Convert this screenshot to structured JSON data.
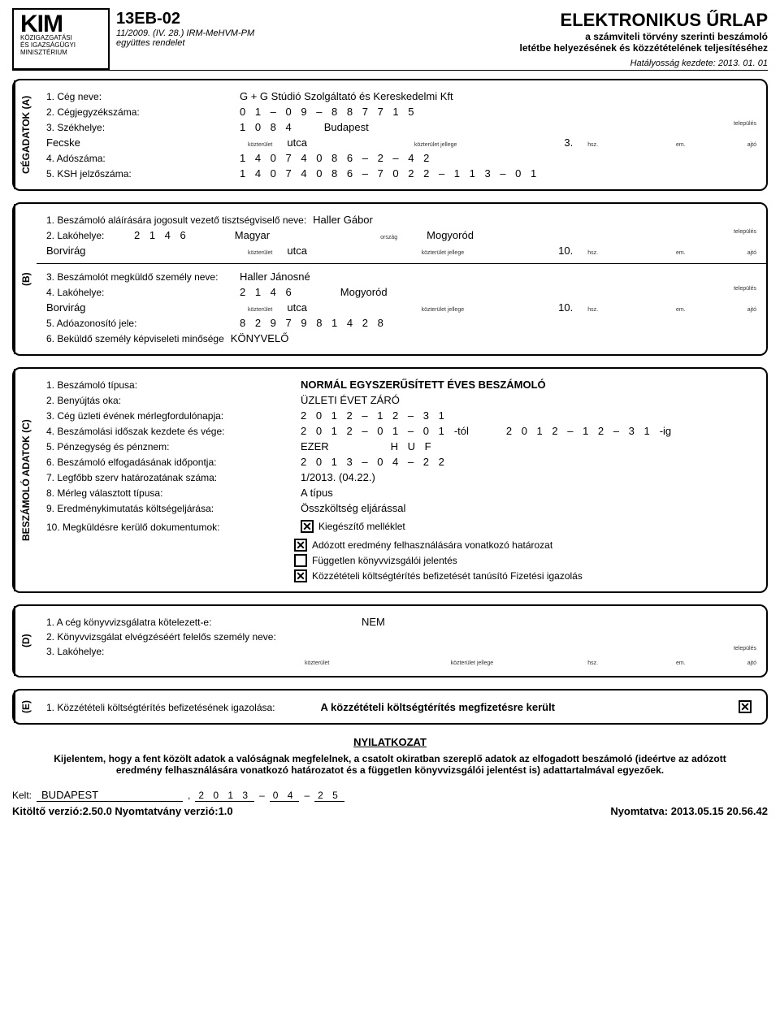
{
  "header": {
    "logo_main": "KIM",
    "logo_sub1": "KÖZIGAZGATÁSI",
    "logo_sub2": "ÉS IGAZSÁGÜGYI",
    "logo_sub3": "MINISZTÉRIUM",
    "form_code": "13EB-02",
    "form_ref1": "11/2009. (IV. 28.) IRM-MeHVM-PM",
    "form_ref2": "együttes rendelet",
    "title": "ELEKTRONIKUS ŰRLAP",
    "sub1": "a számviteli törvény szerinti beszámoló",
    "sub2": "letétbe helyezésének és közzétételének teljesítéséhez",
    "eff": "Hatályosság kezdete: 2013. 01. 01"
  },
  "labels_tiny": {
    "telepules": "település",
    "kozterulet": "közterület",
    "koztjell": "közterület jellege",
    "hsz": "hsz.",
    "em": "em.",
    "ajto": "ajtó",
    "orszag": "ország"
  },
  "A": {
    "title": "CÉGADATOK (A)",
    "l1": "1. Cég neve:",
    "v1": "G + G Stúdió Szolgáltató és Kereskedelmi Kft",
    "l2": "2. Cégjegyzékszáma:",
    "v2": "0 1 – 0 9 – 8 8 7 7 1 5",
    "l3": "3. Székhelye:",
    "v3_zip": "1 0 8 4",
    "v3_city": "Budapest",
    "v3_street": "Fecske",
    "v3_type": "utca",
    "v3_hsz": "3.",
    "l4": "4. Adószáma:",
    "v4": "1 4 0 7 4 0 8 6 – 2 – 4 2",
    "l5": "5. KSH jelzőszáma:",
    "v5": "1 4 0 7 4 0 8 6 – 7 0 2 2 – 1 1 3 – 0 1"
  },
  "B": {
    "title": "(B)",
    "l1": "1. Beszámoló aláírására jogosult vezető tisztségviselő neve:",
    "v1": "Haller Gábor",
    "l2": "2. Lakóhelye:",
    "v2_zip": "2 1 4 6",
    "v2_country": "Magyar",
    "v2_city": "Mogyoród",
    "v2_street": "Borvirág",
    "v2_type": "utca",
    "v2_hsz": "10.",
    "l3": "3. Beszámolót megküldő személy neve:",
    "v3": "Haller Jánosné",
    "l4": "4. Lakóhelye:",
    "v4_zip": "2 1 4 6",
    "v4_city": "Mogyoród",
    "v4_street": "Borvirág",
    "v4_type": "utca",
    "v4_hsz": "10.",
    "l5": "5. Adóazonosító jele:",
    "v5": "8 2 9 7 9 8 1 4 2 8",
    "l6": "6. Beküldő személy képviseleti minősége",
    "v6": "KÖNYVELŐ"
  },
  "C": {
    "title": "BESZÁMOLÓ ADATOK (C)",
    "l1": "1. Beszámoló típusa:",
    "v1": "NORMÁL EGYSZERŰSÍTETT ÉVES BESZÁMOLÓ",
    "l2": "2. Benyújtás oka:",
    "v2": "ÜZLETI ÉVET ZÁRÓ",
    "l3": "3. Cég üzleti évének mérlegfordulónapja:",
    "v3": "2 0 1 2 – 1 2 – 3 1",
    "l4": "4. Beszámolási időszak kezdete és vége:",
    "v4a": "2 0 1 2 – 0 1 – 0 1",
    "v4a_sfx": "-tól",
    "v4b": "2 0 1 2 – 1 2 – 3 1",
    "v4b_sfx": "-ig",
    "l5": "5. Pénzegység és pénznem:",
    "v5a": "EZER",
    "v5b": "H  U  F",
    "l6": "6. Beszámoló elfogadásának időpontja:",
    "v6": "2 0 1 3 – 0 4 – 2 2",
    "l7": "7. Legfőbb szerv határozatának száma:",
    "v7": "1/2013. (04.22.)",
    "l8": "8. Mérleg választott típusa:",
    "v8": "A típus",
    "l9": "9. Eredménykimutatás költségeljárása:",
    "v9": "Összköltség eljárással",
    "l10": "10. Megküldésre kerülő dokumentumok:",
    "docs": [
      {
        "checked": true,
        "label": "Kiegészítő melléklet"
      },
      {
        "checked": true,
        "label": "Adózott eredmény felhasználására vonatkozó határozat"
      },
      {
        "checked": false,
        "label": "Független könyvvizsgálói jelentés"
      },
      {
        "checked": true,
        "label": "Közzétételi költségtérítés befizetését tanúsító Fizetési igazolás"
      }
    ]
  },
  "D": {
    "title": "(D)",
    "l1": "1. A cég könyvvizsgálatra kötelezett-e:",
    "v1": "NEM",
    "l2": "2. Könyvvizsgálat elvégzéséért felelős személy neve:",
    "l3": "3. Lakóhelye:"
  },
  "E": {
    "title": "(E)",
    "l1": "1. Közzétételi költségtérítés befizetésének igazolása:",
    "v1": "A közzétételi költségtérítés megfizetésre került",
    "checked": "✕"
  },
  "decl": {
    "title": "NYILATKOZAT",
    "text": "Kijelentem, hogy a fent közölt adatok a valóságnak megfelelnek, a csatolt okiratban szereplő adatok az elfogadott beszámoló (ideértve az adózott eredmény felhasználására vonatkozó határozatot és a független könyvvizsgálói jelentést is) adattartalmával egyezőek."
  },
  "sign": {
    "kelt_l": "Kelt:",
    "place": "BUDAPEST",
    "comma": ",",
    "y": "2 0 1 3",
    "m": "0 4",
    "d": "2 5"
  },
  "footer": {
    "left": "Kitöltő verzió:2.50.0  Nyomtatvány verzió:1.0",
    "right": "Nyomtatva: 2013.05.15 20.56.42"
  }
}
